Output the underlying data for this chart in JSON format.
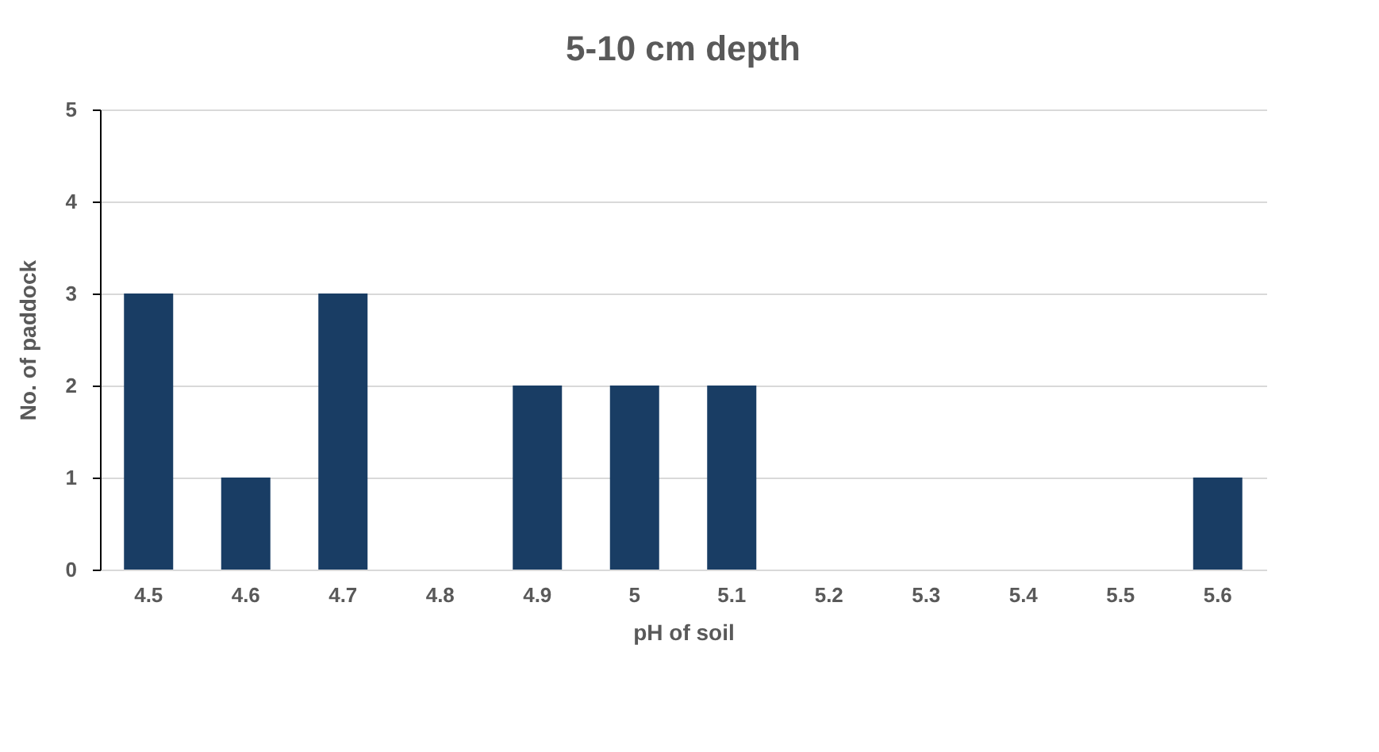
{
  "chart_data": {
    "type": "bar",
    "title": "5-10 cm depth",
    "xlabel": "pH of soil",
    "ylabel": "No. of paddock",
    "categories": [
      "4.5",
      "4.6",
      "4.7",
      "4.8",
      "4.9",
      "5",
      "5.1",
      "5.2",
      "5.3",
      "5.4",
      "5.5",
      "5.6"
    ],
    "values": [
      3,
      1,
      3,
      0,
      2,
      2,
      2,
      0,
      0,
      0,
      0,
      1
    ],
    "color": "#193d64",
    "ylim": [
      0,
      5
    ],
    "yticks": [
      0,
      1,
      2,
      3,
      4,
      5
    ],
    "grid": "y"
  }
}
